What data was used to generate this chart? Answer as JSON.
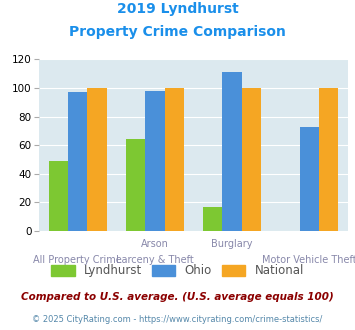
{
  "title_line1": "2019 Lyndhurst",
  "title_line2": "Property Crime Comparison",
  "x_labels_top": [
    "",
    "Arson",
    "Burglary",
    ""
  ],
  "x_labels_bottom": [
    "All Property Crime",
    "Larceny & Theft",
    "",
    "Motor Vehicle Theft"
  ],
  "groups": [
    {
      "lyndhurst": 49,
      "ohio": 97,
      "national": 100
    },
    {
      "lyndhurst": 64,
      "ohio": 98,
      "national": 100
    },
    {
      "lyndhurst": 17,
      "ohio": 111,
      "national": 100
    },
    {
      "lyndhurst": null,
      "ohio": 73,
      "national": 100
    }
  ],
  "ylim": [
    0,
    120
  ],
  "yticks": [
    0,
    20,
    40,
    60,
    80,
    100,
    120
  ],
  "color_lyndhurst": "#7dc832",
  "color_ohio": "#4a90d9",
  "color_national": "#f5a623",
  "bg_color": "#dce9ef",
  "bar_width": 0.25,
  "legend_labels": [
    "Lyndhurst",
    "Ohio",
    "National"
  ],
  "footnote1": "Compared to U.S. average. (U.S. average equals 100)",
  "footnote2": "© 2025 CityRating.com - https://www.cityrating.com/crime-statistics/",
  "title_color": "#1a8fea",
  "footnote1_color": "#8b0000",
  "footnote2_color": "#5588aa"
}
